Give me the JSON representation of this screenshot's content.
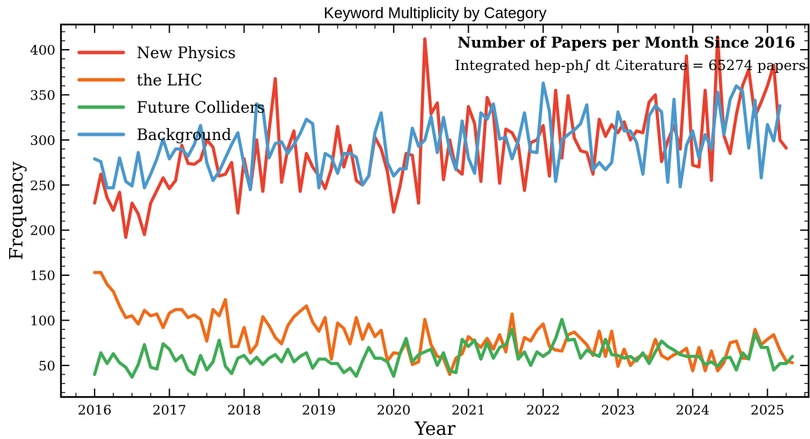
{
  "chart_data": {
    "type": "line",
    "title": "Keyword Multiplicity by Category",
    "xlabel": "Year",
    "ylabel": "Frequency",
    "xlim": [
      2015.55,
      2025.55
    ],
    "ylim": [
      15,
      428
    ],
    "x_ticks": [
      2016,
      2017,
      2018,
      2019,
      2020,
      2021,
      2022,
      2023,
      2024,
      2025
    ],
    "y_ticks": [
      50,
      100,
      150,
      200,
      250,
      300,
      350,
      400
    ],
    "grid": false,
    "legend_position": "top-left",
    "annotation": {
      "title": "Number of Papers per Month Since 2016",
      "subtitle": "Integrated hep-ph∫ dt ℒiterature = 65274 papers"
    },
    "x_start": "2016-01",
    "x_step": "1 month",
    "series": [
      {
        "name": "New Physics",
        "color": "#e8412f",
        "values": [
          230,
          262,
          236,
          222,
          242,
          192,
          230,
          218,
          195,
          230,
          244,
          258,
          246,
          255,
          294,
          274,
          273,
          278,
          300,
          292,
          260,
          262,
          275,
          219,
          279,
          245,
          300,
          243,
          310,
          368,
          253,
          290,
          310,
          243,
          285,
          270,
          260,
          246,
          268,
          315,
          270,
          294,
          255,
          250,
          260,
          303,
          290,
          265,
          220,
          248,
          285,
          283,
          230,
          412,
          329,
          341,
          256,
          300,
          268,
          262,
          337,
          318,
          254,
          347,
          330,
          252,
          312,
          308,
          295,
          244,
          297,
          300,
          316,
          260,
          355,
          280,
          349,
          302,
          288,
          286,
          262,
          323,
          304,
          317,
          308,
          320,
          300,
          310,
          308,
          342,
          350,
          276,
          299,
          316,
          290,
          393,
          272,
          270,
          355,
          255,
          414,
          305,
          285,
          328,
          360,
          378,
          326,
          342,
          360,
          383,
          300,
          291
        ]
      },
      {
        "name": "the LHC",
        "color": "#f06b18",
        "values": [
          153,
          153,
          140,
          132,
          116,
          103,
          105,
          96,
          111,
          105,
          107,
          92,
          108,
          112,
          112,
          103,
          106,
          101,
          77,
          112,
          105,
          123,
          71,
          71,
          92,
          64,
          73,
          104,
          94,
          81,
          74,
          94,
          104,
          110,
          116,
          98,
          88,
          103,
          57,
          97,
          91,
          74,
          103,
          79,
          96,
          82,
          89,
          55,
          64,
          63,
          76,
          51,
          54,
          101,
          73,
          60,
          58,
          40,
          58,
          63,
          82,
          76,
          70,
          80,
          68,
          84,
          65,
          107,
          57,
          81,
          77,
          89,
          96,
          71,
          67,
          66,
          84,
          87,
          80,
          73,
          61,
          88,
          60,
          88,
          49,
          68,
          50,
          58,
          62,
          58,
          79,
          61,
          57,
          62,
          64,
          69,
          44,
          70,
          44,
          66,
          44,
          53,
          75,
          77,
          58,
          58,
          90,
          73,
          79,
          84,
          67,
          55,
          53
        ]
      },
      {
        "name": "Future Colliders",
        "color": "#3eac55",
        "values": [
          40,
          64,
          52,
          63,
          53,
          48,
          37,
          51,
          73,
          48,
          46,
          74,
          68,
          55,
          61,
          45,
          40,
          61,
          45,
          54,
          78,
          49,
          41,
          58,
          61,
          52,
          59,
          51,
          58,
          62,
          54,
          68,
          54,
          60,
          64,
          47,
          57,
          57,
          52,
          52,
          42,
          47,
          38,
          55,
          70,
          58,
          58,
          54,
          38,
          63,
          80,
          54,
          62,
          65,
          68,
          50,
          64,
          44,
          42,
          79,
          71,
          78,
          57,
          75,
          58,
          70,
          73,
          90,
          57,
          65,
          50,
          65,
          60,
          65,
          80,
          101,
          78,
          79,
          58,
          67,
          63,
          60,
          79,
          62,
          61,
          58,
          60,
          55,
          64,
          52,
          65,
          77,
          71,
          67,
          62,
          60,
          60,
          60,
          51,
          54,
          49,
          58,
          59,
          45,
          64,
          57,
          85,
          70,
          70,
          45,
          52,
          52,
          60
        ]
      },
      {
        "name": "Background",
        "color": "#4a98cc",
        "values": [
          279,
          276,
          247,
          247,
          280,
          254,
          249,
          286,
          247,
          262,
          279,
          301,
          279,
          290,
          290,
          282,
          295,
          316,
          275,
          255,
          265,
          280,
          295,
          308,
          272,
          245,
          340,
          335,
          280,
          296,
          298,
          285,
          295,
          307,
          323,
          318,
          247,
          285,
          281,
          263,
          285,
          285,
          281,
          250,
          260,
          308,
          330,
          275,
          260,
          268,
          268,
          313,
          293,
          300,
          326,
          286,
          325,
          288,
          267,
          321,
          280,
          263,
          330,
          323,
          340,
          301,
          303,
          279,
          299,
          330,
          287,
          286,
          363,
          332,
          254,
          300,
          306,
          311,
          318,
          339,
          267,
          275,
          267,
          275,
          331,
          310,
          310,
          297,
          262,
          327,
          338,
          331,
          253,
          345,
          248,
          294,
          310,
          280,
          306,
          290,
          353,
          306,
          345,
          360,
          354,
          291,
          344,
          258,
          317,
          299,
          338
        ]
      }
    ]
  }
}
